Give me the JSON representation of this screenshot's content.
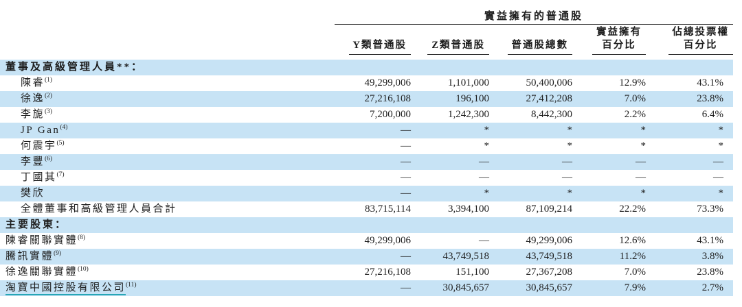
{
  "page": {
    "background": "#ffffff",
    "text_color": "#1e1e1e",
    "stripe_color": "#c7e3f5",
    "rule_color": "#2b2b2b",
    "link_underline_color": "#27a6b6"
  },
  "table": {
    "group_header": "實益擁有的普通股",
    "columns": [
      {
        "lines": [
          "Y類普通股"
        ]
      },
      {
        "lines": [
          "Z類普通股"
        ]
      },
      {
        "lines": [
          "普通股總數"
        ]
      },
      {
        "lines": [
          "實益擁有",
          "百分比"
        ]
      },
      {
        "lines": [
          "佔總投票權",
          "百分比"
        ]
      }
    ],
    "rows": [
      {
        "name": "董事及高級管理人員**：",
        "sup": "",
        "style": "section",
        "values": [
          "",
          "",
          "",
          "",
          ""
        ]
      },
      {
        "name": "陳睿",
        "sup": "(1)",
        "style": "indent",
        "values": [
          "49,299,006",
          "1,101,000",
          "50,400,006",
          "12.9%",
          "43.1%"
        ]
      },
      {
        "name": "徐逸",
        "sup": "(2)",
        "style": "indent",
        "values": [
          "27,216,108",
          "196,100",
          "27,412,208",
          "7.0%",
          "23.8%"
        ]
      },
      {
        "name": "李旎",
        "sup": "(3)",
        "style": "indent",
        "values": [
          "7,200,000",
          "1,242,300",
          "8,442,300",
          "2.2%",
          "6.4%"
        ]
      },
      {
        "name": "JP Gan",
        "sup": "(4)",
        "style": "indent",
        "values": [
          "—",
          "*",
          "*",
          "*",
          "*"
        ]
      },
      {
        "name": "何震宇",
        "sup": "(5)",
        "style": "indent",
        "values": [
          "—",
          "*",
          "*",
          "*",
          "*"
        ]
      },
      {
        "name": "李豐",
        "sup": "(6)",
        "style": "indent",
        "values": [
          "—",
          "—",
          "—",
          "—",
          "—"
        ]
      },
      {
        "name": "丁國其",
        "sup": "(7)",
        "style": "indent",
        "values": [
          "—",
          "—",
          "—",
          "—",
          "—"
        ]
      },
      {
        "name": "樊欣",
        "sup": "",
        "style": "indent",
        "values": [
          "—",
          "*",
          "*",
          "*",
          "*"
        ]
      },
      {
        "name": "全體董事和高級管理人員合計",
        "sup": "",
        "style": "indent",
        "values": [
          "83,715,114",
          "3,394,100",
          "87,109,214",
          "22.2%",
          "73.3%"
        ]
      },
      {
        "name": "主要股東：",
        "sup": "",
        "style": "section",
        "values": [
          "",
          "",
          "",
          "",
          ""
        ]
      },
      {
        "name": "陳睿關聯實體",
        "sup": "(8)",
        "style": "flush",
        "values": [
          "49,299,006",
          "—",
          "49,299,006",
          "12.6%",
          "43.1%"
        ]
      },
      {
        "name": "騰訊實體",
        "sup": "(9)",
        "style": "flush",
        "values": [
          "—",
          "43,749,518",
          "43,749,518",
          "11.2%",
          "3.8%"
        ]
      },
      {
        "name": "徐逸關聯實體",
        "sup": "(10)",
        "style": "flush",
        "values": [
          "27,216,108",
          "151,100",
          "27,367,208",
          "7.0%",
          "23.8%"
        ]
      },
      {
        "name": "淘寶中國控股有限公司",
        "sup": "(11)",
        "style": "flush link",
        "values": [
          "—",
          "30,845,657",
          "30,845,657",
          "7.9%",
          "2.7%"
        ]
      }
    ]
  }
}
